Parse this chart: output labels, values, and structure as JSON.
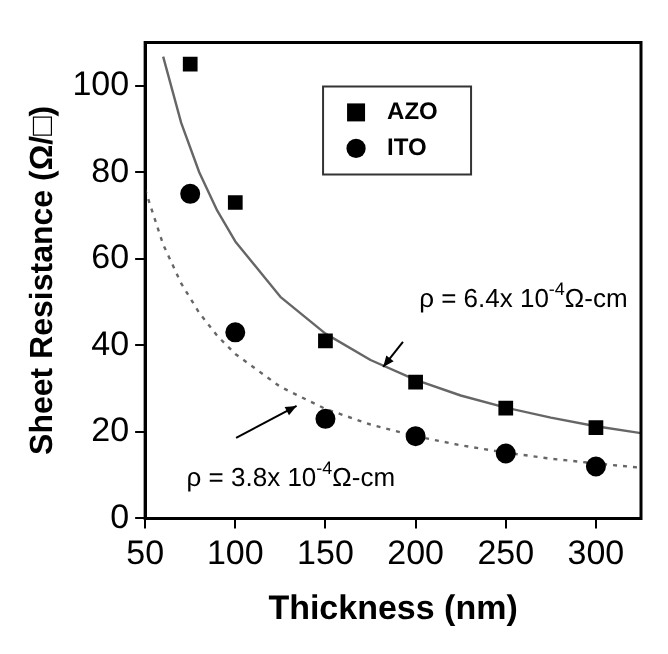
{
  "chart_data": {
    "type": "scatter",
    "xlabel": "Thickness (nm)",
    "ylabel": "Sheet Resistance (Ω/□)",
    "xlim": [
      50,
      325
    ],
    "xticks": [
      50,
      100,
      150,
      200,
      250,
      300
    ],
    "ylim": [
      0,
      110
    ],
    "yticks": [
      0,
      20,
      40,
      60,
      80,
      100
    ],
    "grid": false,
    "legend": "top",
    "series": [
      {
        "name": "AZO",
        "marker": "square",
        "color": "#000000",
        "x": [
          75,
          100,
          150,
          200,
          250,
          300
        ],
        "values": [
          105,
          73,
          41,
          31.5,
          25.5,
          21
        ]
      },
      {
        "name": "ITO",
        "marker": "circle",
        "color": "#000000",
        "x": [
          75,
          100,
          150,
          200,
          250,
          300
        ],
        "values": [
          75,
          43,
          23,
          19,
          15,
          12
        ]
      },
      {
        "type": "line",
        "marker": "none",
        "line_style": "solid",
        "color": "#666666",
        "x": [
          60,
          70,
          80,
          90,
          100,
          125,
          150,
          175,
          200,
          225,
          250,
          275,
          300,
          325
        ],
        "values": [
          106.7,
          91.4,
          80,
          71.1,
          64,
          51.2,
          42.7,
          36.6,
          32,
          28.4,
          25.6,
          23.3,
          21.3,
          19.7
        ]
      },
      {
        "type": "line",
        "marker": "none",
        "line_style": "dotted",
        "color": "#666666",
        "x": [
          50,
          60,
          70,
          80,
          90,
          100,
          125,
          150,
          175,
          200,
          225,
          250,
          275,
          300,
          325
        ],
        "values": [
          76,
          63.3,
          54.3,
          47.5,
          42.2,
          38,
          30.4,
          25.3,
          21.7,
          19,
          16.9,
          15.2,
          13.8,
          12.7,
          11.7
        ]
      }
    ],
    "annotations": [
      {
        "text": "ρ = 6.4x 10$^{-4}$Ω-cm",
        "x": 182,
        "y": 35
      },
      {
        "text": "ρ = 3.8x 10$^{-4}$Ω-cm",
        "x": 134,
        "y": 26
      }
    ]
  }
}
